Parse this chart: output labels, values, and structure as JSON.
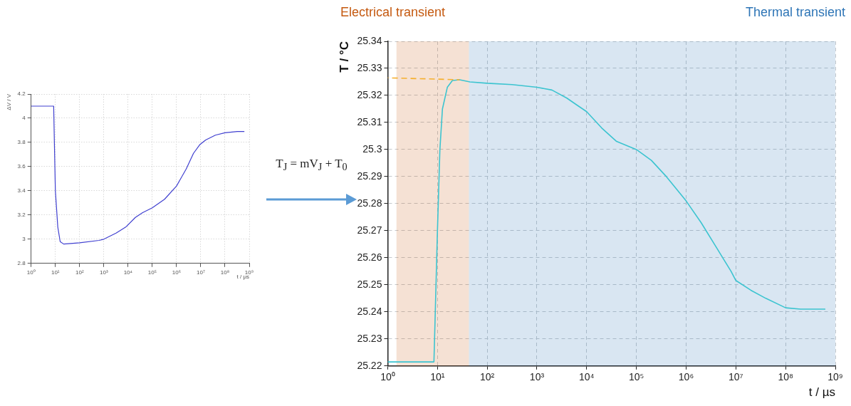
{
  "chart_data": [
    {
      "type": "line",
      "xlabel": "t / μs",
      "ylabel": "ΔV / V",
      "log": "x",
      "grid": true,
      "legend": false,
      "marker": "none",
      "xlim": [
        1,
        1000000000
      ],
      "ylim": [
        2.8,
        4.2
      ],
      "xticks": [
        {
          "value": 1,
          "label": "10⁰"
        },
        {
          "value": 10,
          "label": "10¹"
        },
        {
          "value": 100,
          "label": "10²"
        },
        {
          "value": 1000,
          "label": "10³"
        },
        {
          "value": 10000,
          "label": "10⁴"
        },
        {
          "value": 100000,
          "label": "10⁵"
        },
        {
          "value": 1000000,
          "label": "10⁶"
        },
        {
          "value": 10000000,
          "label": "10⁷"
        },
        {
          "value": 100000000,
          "label": "10⁸"
        },
        {
          "value": 1000000000,
          "label": "10⁹"
        }
      ],
      "yticks": [
        2.8,
        3,
        3.2,
        3.4,
        3.6,
        3.8,
        4,
        4.2
      ],
      "series": [
        {
          "color": "#4040d0",
          "x": [
            1,
            8.5,
            9.1,
            10,
            12.6,
            15.8,
            22,
            100,
            630,
            1000,
            3200,
            8000,
            20000,
            40000,
            100000,
            320000,
            1000000,
            2500000,
            5000000,
            9000000,
            16000000,
            40000000,
            100000000,
            320000000,
            630000000
          ],
          "values": [
            4.1,
            4.1,
            3.8,
            3.4,
            3.1,
            2.98,
            2.96,
            2.97,
            2.99,
            3.0,
            3.05,
            3.1,
            3.18,
            3.22,
            3.26,
            3.33,
            3.44,
            3.58,
            3.71,
            3.78,
            3.82,
            3.86,
            3.88,
            3.89,
            3.89
          ]
        }
      ]
    },
    {
      "type": "other",
      "annotations": [
        "T$_{J}$ = mV$_{J}$ + T$_{0}$"
      ]
    },
    {
      "type": "line",
      "xlabel": "t / µs",
      "ylabel": "T / °C",
      "log": "x",
      "grid": true,
      "legend": false,
      "marker": "none",
      "xlim": [
        1,
        1000000000
      ],
      "ylim": [
        25.22,
        25.34
      ],
      "xticks": [
        {
          "value": 1,
          "label": "10⁰"
        },
        {
          "value": 10,
          "label": "10¹"
        },
        {
          "value": 100,
          "label": "10²"
        },
        {
          "value": 1000,
          "label": "10³"
        },
        {
          "value": 10000,
          "label": "10⁴"
        },
        {
          "value": 100000,
          "label": "10⁵"
        },
        {
          "value": 1000000,
          "label": "10⁶"
        },
        {
          "value": 10000000,
          "label": "10⁷"
        },
        {
          "value": 100000000,
          "label": "10⁸"
        },
        {
          "value": 1000000000,
          "label": "10⁹"
        }
      ],
      "yticks": [
        25.22,
        25.23,
        25.24,
        25.25,
        25.26,
        25.27,
        25.28,
        25.29,
        25.3,
        25.31,
        25.32,
        25.33,
        25.34
      ],
      "bands": [
        {
          "axis": "x",
          "from": 1.5,
          "to": 43,
          "label": "Electrical transient",
          "color": "#c55a11"
        },
        {
          "axis": "x",
          "from": 43,
          "to": 1000000000,
          "label": "Thermal transient",
          "color": "#2e75b6"
        }
      ],
      "series": [
        {
          "color": "#3cc4d0",
          "x": [
            1,
            8.5,
            8.9,
            10,
            11.2,
            12.6,
            15.8,
            20,
            28,
            45,
            100,
            316,
            1000,
            2000,
            4000,
            6300,
            10000,
            20000,
            40000,
            100000,
            200000,
            400000,
            1000000,
            2000000,
            4000000,
            8000000,
            10000000,
            20000000,
            40000000,
            100000000,
            200000000,
            630000000
          ],
          "values": [
            25.2215,
            25.2215,
            25.235,
            25.27,
            25.3,
            25.315,
            25.323,
            25.3255,
            25.3258,
            25.325,
            25.3245,
            25.324,
            25.323,
            25.322,
            25.319,
            25.3165,
            25.314,
            25.308,
            25.303,
            25.3,
            25.296,
            25.29,
            25.281,
            25.273,
            25.264,
            25.255,
            25.2516,
            25.248,
            25.245,
            25.2415,
            25.241,
            25.241
          ]
        },
        {
          "type": "line",
          "line_style": "dashed",
          "color": "#f5b030",
          "x": [
            1,
            28
          ],
          "values": [
            25.3265,
            25.3258
          ]
        }
      ]
    }
  ]
}
